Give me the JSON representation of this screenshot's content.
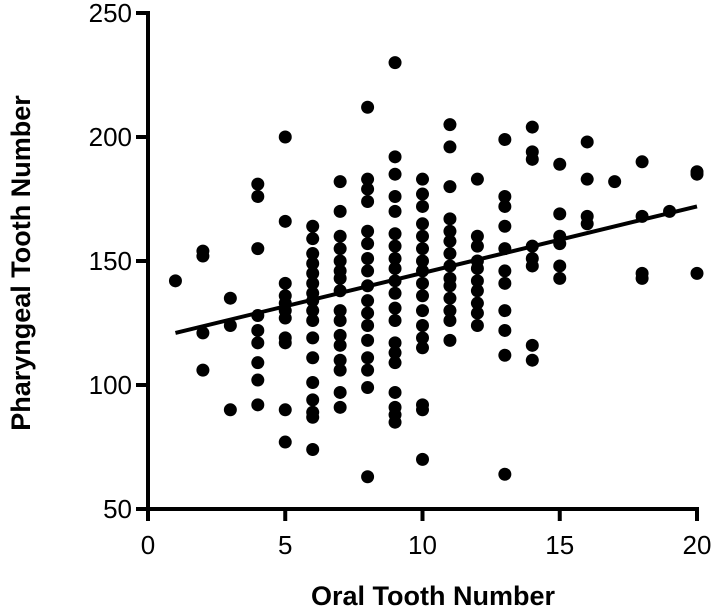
{
  "chart_data": {
    "type": "scatter",
    "title": "",
    "xlabel": "Oral Tooth Number",
    "ylabel": "Pharyngeal Tooth Number",
    "xlim": [
      0,
      20
    ],
    "ylim": [
      50,
      250
    ],
    "x_ticks": [
      0,
      5,
      10,
      15,
      20
    ],
    "y_ticks": [
      50,
      100,
      150,
      200,
      250
    ],
    "grid": false,
    "legend": "none",
    "colors": {
      "points": "#000000",
      "axes": "#000000",
      "trendline": "#000000"
    },
    "trendline": {
      "x": [
        1,
        20
      ],
      "y": [
        121,
        172
      ]
    },
    "series": [
      {
        "points": [
          [
            1,
            142
          ],
          [
            2,
            154
          ],
          [
            2,
            152
          ],
          [
            2,
            121
          ],
          [
            2,
            106
          ],
          [
            3,
            135
          ],
          [
            3,
            124
          ],
          [
            3,
            90
          ],
          [
            4,
            181
          ],
          [
            4,
            176
          ],
          [
            4,
            155
          ],
          [
            4,
            128
          ],
          [
            4,
            122
          ],
          [
            4,
            117
          ],
          [
            4,
            109
          ],
          [
            4,
            102
          ],
          [
            4,
            92
          ],
          [
            5,
            200
          ],
          [
            5,
            166
          ],
          [
            5,
            141
          ],
          [
            5,
            136
          ],
          [
            5,
            133
          ],
          [
            5,
            130
          ],
          [
            5,
            127
          ],
          [
            5,
            119
          ],
          [
            5,
            117
          ],
          [
            5,
            90
          ],
          [
            5,
            77
          ],
          [
            6,
            164
          ],
          [
            6,
            159
          ],
          [
            6,
            153
          ],
          [
            6,
            149
          ],
          [
            6,
            145
          ],
          [
            6,
            141
          ],
          [
            6,
            137
          ],
          [
            6,
            134
          ],
          [
            6,
            130
          ],
          [
            6,
            126
          ],
          [
            6,
            119
          ],
          [
            6,
            111
          ],
          [
            6,
            101
          ],
          [
            6,
            94
          ],
          [
            6,
            89
          ],
          [
            6,
            87
          ],
          [
            6,
            74
          ],
          [
            7,
            182
          ],
          [
            7,
            170
          ],
          [
            7,
            160
          ],
          [
            7,
            155
          ],
          [
            7,
            150
          ],
          [
            7,
            146
          ],
          [
            7,
            143
          ],
          [
            7,
            138
          ],
          [
            7,
            130
          ],
          [
            7,
            126
          ],
          [
            7,
            120
          ],
          [
            7,
            116
          ],
          [
            7,
            110
          ],
          [
            7,
            106
          ],
          [
            7,
            97
          ],
          [
            7,
            91
          ],
          [
            8,
            212
          ],
          [
            8,
            183
          ],
          [
            8,
            179
          ],
          [
            8,
            174
          ],
          [
            8,
            162
          ],
          [
            8,
            157
          ],
          [
            8,
            151
          ],
          [
            8,
            146
          ],
          [
            8,
            140
          ],
          [
            8,
            134
          ],
          [
            8,
            129
          ],
          [
            8,
            124
          ],
          [
            8,
            118
          ],
          [
            8,
            111
          ],
          [
            8,
            106
          ],
          [
            8,
            99
          ],
          [
            8,
            63
          ],
          [
            9,
            230
          ],
          [
            9,
            192
          ],
          [
            9,
            185
          ],
          [
            9,
            176
          ],
          [
            9,
            170
          ],
          [
            9,
            161
          ],
          [
            9,
            156
          ],
          [
            9,
            151
          ],
          [
            9,
            147
          ],
          [
            9,
            142
          ],
          [
            9,
            137
          ],
          [
            9,
            131
          ],
          [
            9,
            126
          ],
          [
            9,
            117
          ],
          [
            9,
            113
          ],
          [
            9,
            109
          ],
          [
            9,
            97
          ],
          [
            9,
            91
          ],
          [
            9,
            88
          ],
          [
            9,
            85
          ],
          [
            10,
            183
          ],
          [
            10,
            177
          ],
          [
            10,
            172
          ],
          [
            10,
            165
          ],
          [
            10,
            160
          ],
          [
            10,
            155
          ],
          [
            10,
            150
          ],
          [
            10,
            146
          ],
          [
            10,
            141
          ],
          [
            10,
            136
          ],
          [
            10,
            130
          ],
          [
            10,
            124
          ],
          [
            10,
            119
          ],
          [
            10,
            115
          ],
          [
            10,
            92
          ],
          [
            10,
            90
          ],
          [
            10,
            70
          ],
          [
            11,
            205
          ],
          [
            11,
            196
          ],
          [
            11,
            180
          ],
          [
            11,
            167
          ],
          [
            11,
            162
          ],
          [
            11,
            158
          ],
          [
            11,
            153
          ],
          [
            11,
            148
          ],
          [
            11,
            143
          ],
          [
            11,
            140
          ],
          [
            11,
            135
          ],
          [
            11,
            130
          ],
          [
            11,
            126
          ],
          [
            11,
            118
          ],
          [
            12,
            183
          ],
          [
            12,
            160
          ],
          [
            12,
            156
          ],
          [
            12,
            150
          ],
          [
            12,
            147
          ],
          [
            12,
            142
          ],
          [
            12,
            138
          ],
          [
            12,
            133
          ],
          [
            12,
            129
          ],
          [
            12,
            124
          ],
          [
            13,
            199
          ],
          [
            13,
            176
          ],
          [
            13,
            172
          ],
          [
            13,
            164
          ],
          [
            13,
            155
          ],
          [
            13,
            146
          ],
          [
            13,
            141
          ],
          [
            13,
            130
          ],
          [
            13,
            122
          ],
          [
            13,
            112
          ],
          [
            13,
            64
          ],
          [
            14,
            204
          ],
          [
            14,
            194
          ],
          [
            14,
            191
          ],
          [
            14,
            156
          ],
          [
            14,
            151
          ],
          [
            14,
            148
          ],
          [
            14,
            116
          ],
          [
            14,
            110
          ],
          [
            15,
            189
          ],
          [
            15,
            169
          ],
          [
            15,
            160
          ],
          [
            15,
            157
          ],
          [
            15,
            148
          ],
          [
            15,
            143
          ],
          [
            16,
            198
          ],
          [
            16,
            183
          ],
          [
            16,
            168
          ],
          [
            16,
            165
          ],
          [
            17,
            182
          ],
          [
            18,
            190
          ],
          [
            18,
            168
          ],
          [
            18,
            145
          ],
          [
            18,
            143
          ],
          [
            19,
            170
          ],
          [
            20,
            186
          ],
          [
            20,
            185
          ],
          [
            20,
            145
          ]
        ]
      }
    ]
  }
}
